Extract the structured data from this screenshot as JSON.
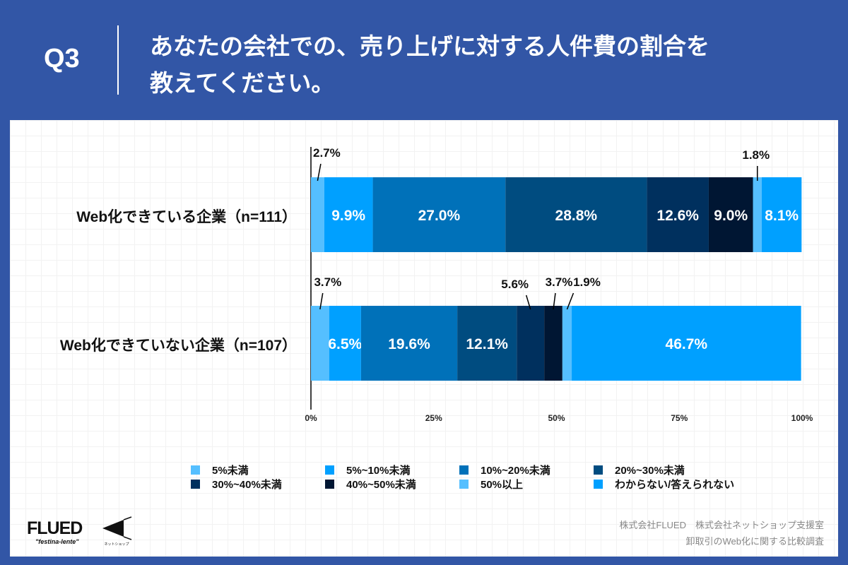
{
  "header": {
    "question": "Q3",
    "title_line1": "あなたの会社での、売り上げに対する人件費の割合を",
    "title_line2": "教えてください。"
  },
  "chart_data": {
    "type": "bar",
    "orientation": "horizontal-stacked-100",
    "categories": [
      "Web化できている企業（n=111）",
      "Web化できていない企業（n=107）"
    ],
    "series": [
      {
        "name": "5%未満",
        "color": "#55bfff",
        "values": [
          2.7,
          3.7
        ]
      },
      {
        "name": "5%~10%未満",
        "color": "#00a0ff",
        "values": [
          9.9,
          6.5
        ]
      },
      {
        "name": "10%~20%未満",
        "color": "#0071b9",
        "values": [
          27.0,
          19.6
        ]
      },
      {
        "name": "20%~30%未満",
        "color": "#004c80",
        "values": [
          28.8,
          12.1
        ]
      },
      {
        "name": "30%~40%未満",
        "color": "#00305e",
        "values": [
          12.6,
          5.6
        ]
      },
      {
        "name": "40%~50%未満",
        "color": "#001633",
        "values": [
          9.0,
          3.7
        ]
      },
      {
        "name": "50%以上",
        "color": "#55bfff",
        "values": [
          1.8,
          1.9
        ]
      },
      {
        "name": "わからない/答えられない",
        "color": "#00a0ff",
        "values": [
          8.1,
          46.7
        ]
      }
    ],
    "xticks": [
      "0%",
      "25%",
      "50%",
      "75%",
      "100%"
    ],
    "xlim": [
      0,
      100
    ],
    "legend": "bottom",
    "grid": false
  },
  "footer": {
    "logo1": "FLUED",
    "logo1_tagline": "\"festina-lente\"",
    "logo2": "ネットショップ支援室",
    "credit1": "株式会社FLUED　株式会社ネットショップ支援室",
    "credit2": "卸取引のWeb化に関する比較調査"
  }
}
